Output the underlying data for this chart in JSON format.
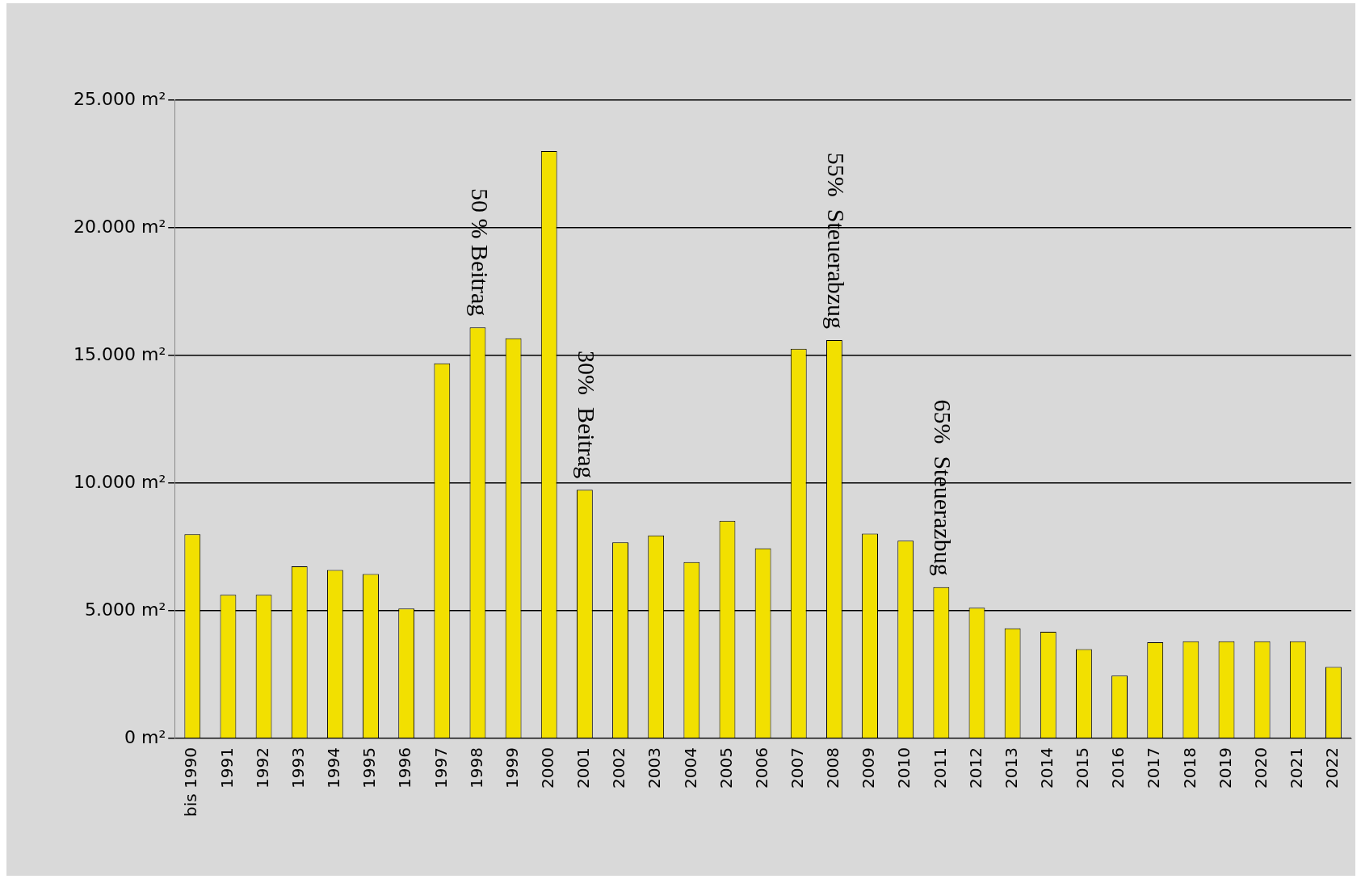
{
  "chart_data": {
    "type": "bar",
    "categories": [
      "bis 1990",
      "1991",
      "1992",
      "1993",
      "1994",
      "1995",
      "1996",
      "1997",
      "1998",
      "1999",
      "2000",
      "2001",
      "2002",
      "2003",
      "2004",
      "2005",
      "2006",
      "2007",
      "2008",
      "2009",
      "2010",
      "2011",
      "2012",
      "2013",
      "2014",
      "2015",
      "2016",
      "2017",
      "2018",
      "2019",
      "2020",
      "2021",
      "2022"
    ],
    "series": [
      {
        "color": "#f2e000",
        "values": [
          8000,
          5630,
          5630,
          6740,
          6600,
          6440,
          5090,
          14690,
          16100,
          15670,
          23010,
          9740,
          7680,
          7950,
          6910,
          8520,
          7450,
          15260,
          15600,
          8020,
          7750,
          5930,
          5120,
          4310,
          4180,
          3500,
          2460,
          3770,
          3810,
          3810,
          3810,
          3810,
          2800
        ]
      }
    ],
    "ylim": [
      0,
      25000
    ],
    "yticks": [
      {
        "value": 0,
        "label": "0 m²"
      },
      {
        "value": 5000,
        "label": "5.000 m²"
      },
      {
        "value": 10000,
        "label": "10.000 m²"
      },
      {
        "value": 15000,
        "label": "15.000 m²"
      },
      {
        "value": 20000,
        "label": "20.000 m²"
      },
      {
        "value": 25000,
        "label": "25.000 m²"
      }
    ],
    "grid": "y",
    "legend": false,
    "annotations": [
      {
        "text": "50 % Beitrag",
        "x": "1998",
        "y": 16100
      },
      {
        "text": "30%  Beitrag",
        "x": "2001",
        "y": 9740
      },
      {
        "text": "55%  Steuerabzug",
        "x": "2008",
        "y": 15600
      },
      {
        "text": "65%  Steuerazbug",
        "x": "2011",
        "y": 5930
      }
    ]
  }
}
